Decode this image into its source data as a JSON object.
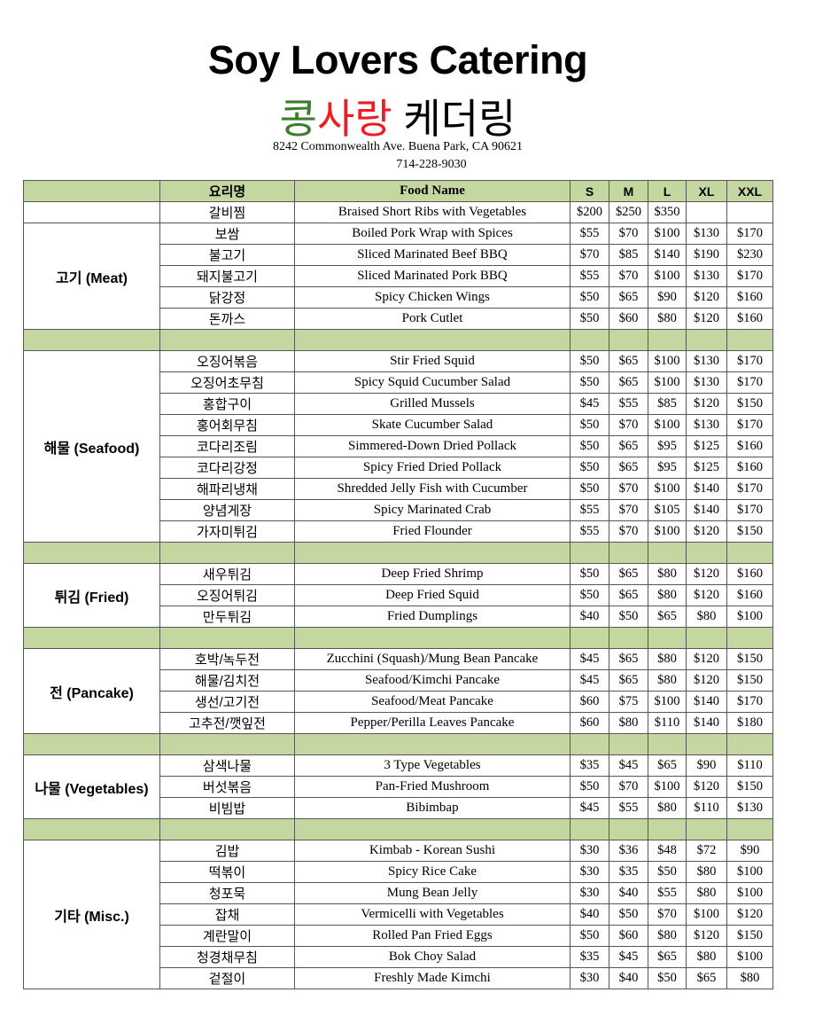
{
  "header": {
    "title": "Soy Lovers Catering",
    "korean_title": {
      "part1": "콩",
      "part2": "사랑",
      "part3": " 케더링"
    },
    "address": "8242 Commonwealth Ave. Buena Park, CA 90621",
    "phone": "714-228-9030"
  },
  "colors": {
    "green_title": "#3a7d2c",
    "red_title": "#ee1c25",
    "table_band": "#c4d7a0"
  },
  "table": {
    "columns": [
      "",
      "요리명",
      "Food Name",
      "S",
      "M",
      "L",
      "XL",
      "XXL"
    ],
    "sections": [
      {
        "category": "",
        "items": [
          [
            "갈비찜",
            "Braised Short Ribs with Vegetables",
            "$200",
            "$250",
            "$350",
            "",
            ""
          ]
        ]
      },
      {
        "category": "고기 (Meat)",
        "items": [
          [
            "보쌈",
            "Boiled Pork Wrap with Spices",
            "$55",
            "$70",
            "$100",
            "$130",
            "$170"
          ],
          [
            "불고기",
            "Sliced Marinated Beef BBQ",
            "$70",
            "$85",
            "$140",
            "$190",
            "$230"
          ],
          [
            "돼지불고기",
            "Sliced Marinated Pork BBQ",
            "$55",
            "$70",
            "$100",
            "$130",
            "$170"
          ],
          [
            "닭강정",
            "Spicy Chicken Wings",
            "$50",
            "$65",
            "$90",
            "$120",
            "$160"
          ],
          [
            "돈까스",
            "Pork Cutlet",
            "$50",
            "$60",
            "$80",
            "$120",
            "$160"
          ]
        ]
      },
      {
        "category": "해물 (Seafood)",
        "items": [
          [
            "오징어볶음",
            "Stir Fried Squid",
            "$50",
            "$65",
            "$100",
            "$130",
            "$170"
          ],
          [
            "오징어초무침",
            "Spicy Squid Cucumber Salad",
            "$50",
            "$65",
            "$100",
            "$130",
            "$170"
          ],
          [
            "홍합구이",
            "Grilled Mussels",
            "$45",
            "$55",
            "$85",
            "$120",
            "$150"
          ],
          [
            "홍어회무침",
            "Skate Cucumber Salad",
            "$50",
            "$70",
            "$100",
            "$130",
            "$170"
          ],
          [
            "코다리조림",
            "Simmered-Down Dried Pollack",
            "$50",
            "$65",
            "$95",
            "$125",
            "$160"
          ],
          [
            "코다리강정",
            "Spicy Fried Dried Pollack",
            "$50",
            "$65",
            "$95",
            "$125",
            "$160"
          ],
          [
            "해파리냉채",
            "Shredded Jelly Fish with Cucumber",
            "$50",
            "$70",
            "$100",
            "$140",
            "$170"
          ],
          [
            "양념게장",
            "Spicy Marinated Crab",
            "$55",
            "$70",
            "$105",
            "$140",
            "$170"
          ],
          [
            "가자미튀김",
            "Fried Flounder",
            "$55",
            "$70",
            "$100",
            "$120",
            "$150"
          ]
        ]
      },
      {
        "category": "튀김 (Fried)",
        "items": [
          [
            "새우튀김",
            "Deep Fried Shrimp",
            "$50",
            "$65",
            "$80",
            "$120",
            "$160"
          ],
          [
            "오징어튀김",
            "Deep Fried Squid",
            "$50",
            "$65",
            "$80",
            "$120",
            "$160"
          ],
          [
            "만두튀김",
            "Fried Dumplings",
            "$40",
            "$50",
            "$65",
            "$80",
            "$100"
          ]
        ]
      },
      {
        "category": "전 (Pancake)",
        "items": [
          [
            "호박/녹두전",
            "Zucchini (Squash)/Mung Bean Pancake",
            "$45",
            "$65",
            "$80",
            "$120",
            "$150"
          ],
          [
            "해물/김치전",
            "Seafood/Kimchi Pancake",
            "$45",
            "$65",
            "$80",
            "$120",
            "$150"
          ],
          [
            "생선/고기전",
            "Seafood/Meat Pancake",
            "$60",
            "$75",
            "$100",
            "$140",
            "$170"
          ],
          [
            "고추전/깻잎전",
            "Pepper/Perilla Leaves Pancake",
            "$60",
            "$80",
            "$110",
            "$140",
            "$180"
          ]
        ]
      },
      {
        "category": "나물 (Vegetables)",
        "items": [
          [
            "삼색나물",
            "3 Type Vegetables",
            "$35",
            "$45",
            "$65",
            "$90",
            "$110"
          ],
          [
            "버섯볶음",
            "Pan-Fried Mushroom",
            "$50",
            "$70",
            "$100",
            "$120",
            "$150"
          ],
          [
            "비빔밥",
            "Bibimbap",
            "$45",
            "$55",
            "$80",
            "$110",
            "$130"
          ]
        ]
      },
      {
        "category": "기타 (Misc.)",
        "items": [
          [
            "김밥",
            "Kimbab - Korean Sushi",
            "$30",
            "$36",
            "$48",
            "$72",
            "$90"
          ],
          [
            "떡볶이",
            "Spicy Rice Cake",
            "$30",
            "$35",
            "$50",
            "$80",
            "$100"
          ],
          [
            "청포묵",
            "Mung Bean Jelly",
            "$30",
            "$40",
            "$55",
            "$80",
            "$100"
          ],
          [
            "잡채",
            "Vermicelli with Vegetables",
            "$40",
            "$50",
            "$70",
            "$100",
            "$120"
          ],
          [
            "계란말이",
            "Rolled Pan Fried Eggs",
            "$50",
            "$60",
            "$80",
            "$120",
            "$150"
          ],
          [
            "청경채무침",
            "Bok Choy Salad",
            "$35",
            "$45",
            "$65",
            "$80",
            "$100"
          ],
          [
            "겉절이",
            "Freshly Made Kimchi",
            "$30",
            "$40",
            "$50",
            "$65",
            "$80"
          ]
        ]
      }
    ]
  }
}
